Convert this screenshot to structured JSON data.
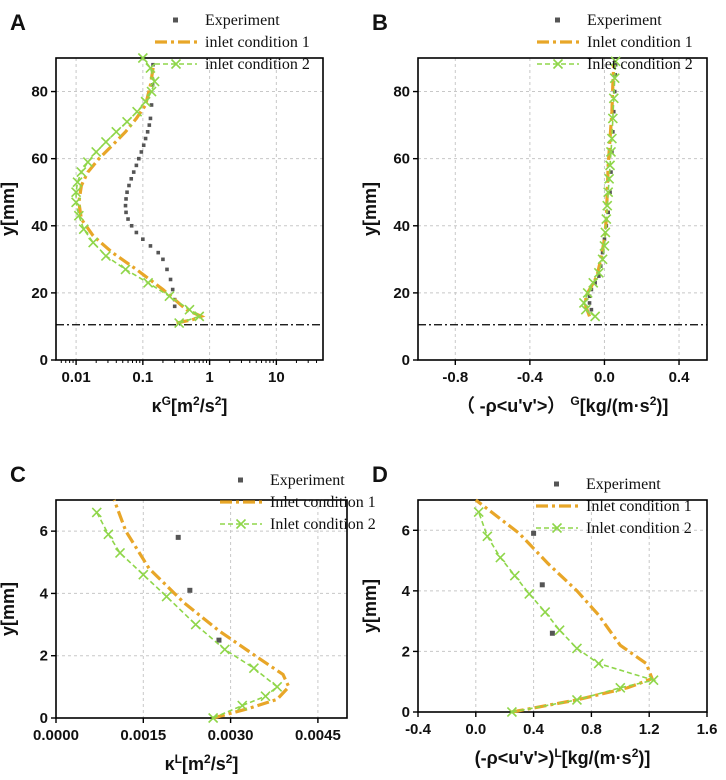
{
  "figure": {
    "colors": {
      "experiment": "#555555",
      "inlet1": "#e8a628",
      "inlet2": "#8fd64a",
      "grid": "#c8c8c8",
      "axis": "#000000",
      "refline": "#000000"
    }
  },
  "chart_data": [
    {
      "id": "A",
      "type": "line",
      "panel_letter": "A",
      "xscale": "log",
      "xlim": [
        0.005,
        50
      ],
      "ylim": [
        0,
        90
      ],
      "xticks": [
        0.01,
        0.1,
        1,
        10
      ],
      "xtick_labels": [
        "0.01",
        "0.1",
        "1",
        "10"
      ],
      "yticks": [
        0,
        20,
        40,
        60,
        80
      ],
      "ytick_labels": [
        "0",
        "20",
        "40",
        "60",
        "80"
      ],
      "ylabel": "y[mm]",
      "xlabel_main": "κ",
      "xlabel_sup": "G",
      "xlabel_rest": "[m",
      "xlabel_sup2": "2",
      "xlabel_rest2": "/s",
      "xlabel_sup3": "2",
      "xlabel_end": "]",
      "hline_y": 10.5,
      "legend": [
        "Experiment",
        "inlet condition 1",
        "inlet condition 2"
      ],
      "series": [
        {
          "name": "Experiment",
          "style": "dots",
          "x": [
            0.3,
            0.3,
            0.28,
            0.26,
            0.23,
            0.2,
            0.17,
            0.13,
            0.1,
            0.08,
            0.068,
            0.06,
            0.056,
            0.055,
            0.056,
            0.058,
            0.062,
            0.067,
            0.073,
            0.08,
            0.087,
            0.095,
            0.103,
            0.11,
            0.118,
            0.125,
            0.13,
            0.135,
            0.14,
            0.142
          ],
          "y": [
            16,
            18,
            21,
            24,
            27,
            30,
            32,
            34,
            36,
            38,
            40,
            42,
            44,
            46,
            48,
            50,
            52,
            54,
            56,
            58,
            60,
            62,
            64,
            66,
            68,
            70,
            72,
            76,
            82,
            88
          ]
        },
        {
          "name": "inlet condition 1",
          "style": "dashdot",
          "x": [
            0.32,
            0.55,
            0.75,
            0.45,
            0.2,
            0.08,
            0.035,
            0.018,
            0.012,
            0.011,
            0.012,
            0.015,
            0.022,
            0.035,
            0.055,
            0.08,
            0.11,
            0.13,
            0.145
          ],
          "y": [
            11,
            12,
            13,
            15,
            21,
            27,
            32,
            37,
            42,
            47,
            52,
            56,
            60,
            64,
            68,
            72,
            76,
            82,
            88
          ]
        },
        {
          "name": "inlet condition 2",
          "style": "xline",
          "x": [
            0.35,
            0.7,
            0.5,
            0.25,
            0.12,
            0.055,
            0.028,
            0.018,
            0.013,
            0.011,
            0.01,
            0.01,
            0.0105,
            0.012,
            0.015,
            0.02,
            0.028,
            0.04,
            0.058,
            0.082,
            0.11,
            0.135,
            0.15,
            0.13,
            0.1
          ],
          "y": [
            11,
            13,
            15,
            19,
            23,
            27,
            31,
            35,
            39,
            43,
            47,
            50,
            53,
            56,
            59,
            62,
            65,
            68,
            71,
            74,
            77,
            80,
            83,
            87,
            90
          ]
        }
      ]
    },
    {
      "id": "B",
      "type": "line",
      "panel_letter": "B",
      "xscale": "linear",
      "xlim": [
        -1.0,
        0.55
      ],
      "ylim": [
        0,
        90
      ],
      "xticks": [
        -0.8,
        -0.4,
        0.0,
        0.4
      ],
      "xtick_labels": [
        "-0.8",
        "-0.4",
        "0.0",
        "0.4"
      ],
      "yticks": [
        0,
        20,
        40,
        60,
        80
      ],
      "ytick_labels": [
        "0",
        "20",
        "40",
        "60",
        "80"
      ],
      "ylabel": "y[mm]",
      "xlabel_main": "（ -ρ<u'v'>） ",
      "xlabel_sup": "G",
      "xlabel_rest": "[kg/(m·s",
      "xlabel_sup2": "2",
      "xlabel_rest2": ")]",
      "hline_y": 10.5,
      "legend": [
        "Experiment",
        "Inlet condition 1",
        "Inlet condition 2"
      ],
      "series": [
        {
          "name": "Experiment",
          "style": "dots",
          "x": [
            -0.07,
            -0.08,
            -0.08,
            -0.07,
            -0.05,
            -0.03,
            -0.02,
            -0.01,
            0.0,
            0.01,
            0.02,
            0.03,
            0.035,
            0.04,
            0.045,
            0.05,
            0.055,
            0.058,
            0.06
          ],
          "y": [
            15,
            17,
            19,
            21,
            23,
            25,
            28,
            32,
            36,
            40,
            44,
            50,
            56,
            62,
            68,
            74,
            80,
            85,
            88
          ]
        },
        {
          "name": "Inlet condition 1",
          "style": "dashdot",
          "x": [
            -0.08,
            -0.1,
            -0.1,
            -0.07,
            -0.04,
            -0.02,
            0.0,
            0.01,
            0.015,
            0.02,
            0.03,
            0.04,
            0.045,
            0.05
          ],
          "y": [
            13,
            16,
            19,
            22,
            25,
            30,
            36,
            42,
            50,
            58,
            66,
            74,
            82,
            88
          ]
        },
        {
          "name": "Inlet condition 2",
          "style": "xline",
          "x": [
            -0.05,
            -0.1,
            -0.11,
            -0.09,
            -0.06,
            -0.03,
            -0.01,
            0.0,
            0.005,
            0.01,
            0.015,
            0.02,
            0.025,
            0.03,
            0.035,
            0.04,
            0.045,
            0.05,
            0.055,
            0.06
          ],
          "y": [
            13,
            15,
            17,
            20,
            23,
            26,
            30,
            34,
            38,
            42,
            46,
            50,
            54,
            58,
            62,
            66,
            72,
            78,
            84,
            89
          ]
        }
      ]
    },
    {
      "id": "C",
      "type": "line",
      "panel_letter": "C",
      "xscale": "linear",
      "xlim": [
        0,
        0.005
      ],
      "ylim": [
        0,
        7
      ],
      "xticks": [
        0.0,
        0.0015,
        0.003,
        0.0045
      ],
      "xtick_labels": [
        "0.0000",
        "0.0015",
        "0.0030",
        "0.0045"
      ],
      "yticks": [
        0,
        2,
        4,
        6
      ],
      "ytick_labels": [
        "0",
        "2",
        "4",
        "6"
      ],
      "ylabel": "y[mm]",
      "xlabel_main": "κ",
      "xlabel_sup": "L",
      "xlabel_rest": "[m",
      "xlabel_sup2": "2",
      "xlabel_rest2": "/s",
      "xlabel_sup3": "2",
      "xlabel_end": "]",
      "legend": [
        "Experiment",
        "Inlet condition 1",
        "Inlet condition 2"
      ],
      "series": [
        {
          "name": "Experiment",
          "style": "squares",
          "x": [
            0.0028,
            0.0023,
            0.0021
          ],
          "y": [
            2.5,
            4.1,
            5.8
          ]
        },
        {
          "name": "Inlet condition 1",
          "style": "dashdot",
          "x": [
            0.0027,
            0.0033,
            0.0038,
            0.004,
            0.0039,
            0.0035,
            0.0028,
            0.0022,
            0.0016,
            0.0012,
            0.001
          ],
          "y": [
            0,
            0.3,
            0.6,
            1.0,
            1.4,
            1.9,
            2.8,
            3.7,
            4.8,
            6.0,
            7.0
          ]
        },
        {
          "name": "Inlet condition 2",
          "style": "xline",
          "x": [
            0.0027,
            0.0032,
            0.0036,
            0.0038,
            0.0034,
            0.0029,
            0.0024,
            0.0019,
            0.0015,
            0.0011,
            0.0009,
            0.0007
          ],
          "y": [
            0,
            0.4,
            0.7,
            1.0,
            1.6,
            2.2,
            3.0,
            3.9,
            4.6,
            5.3,
            5.9,
            6.6
          ]
        }
      ]
    },
    {
      "id": "D",
      "type": "line",
      "panel_letter": "D",
      "xscale": "linear",
      "xlim": [
        -0.4,
        1.6
      ],
      "ylim": [
        0,
        7
      ],
      "xticks": [
        -0.4,
        0.0,
        0.4,
        0.8,
        1.2,
        1.6
      ],
      "xtick_labels": [
        "-0.4",
        "0.0",
        "0.4",
        "0.8",
        "1.2",
        "1.6"
      ],
      "yticks": [
        0,
        2,
        4,
        6
      ],
      "ytick_labels": [
        "0",
        "2",
        "4",
        "6"
      ],
      "ylabel": "y[mm]",
      "xlabel_main": "(-ρ<u'v'>)",
      "xlabel_sup": "L",
      "xlabel_rest": "[kg/(m·s",
      "xlabel_sup2": "2",
      "xlabel_rest2": ")]",
      "legend": [
        "Experiment",
        "Inlet condition 1",
        "Inlet condition 2"
      ],
      "series": [
        {
          "name": "Experiment",
          "style": "squares",
          "x": [
            0.53,
            0.46,
            0.4
          ],
          "y": [
            2.6,
            4.2,
            5.9
          ]
        },
        {
          "name": "Inlet condition 1",
          "style": "dashdot",
          "x": [
            0.25,
            0.7,
            1.05,
            1.22,
            1.18,
            1.0,
            0.85,
            0.7,
            0.5,
            0.3,
            0.0
          ],
          "y": [
            0,
            0.4,
            0.8,
            1.1,
            1.6,
            2.2,
            3.2,
            4.0,
            4.9,
            5.9,
            7.0
          ]
        },
        {
          "name": "Inlet condition 2",
          "style": "xline",
          "x": [
            0.25,
            0.7,
            1.0,
            1.23,
            0.85,
            0.7,
            0.58,
            0.48,
            0.37,
            0.27,
            0.17,
            0.08,
            0.02
          ],
          "y": [
            0,
            0.4,
            0.8,
            1.05,
            1.6,
            2.1,
            2.7,
            3.3,
            3.9,
            4.5,
            5.1,
            5.8,
            6.6
          ]
        }
      ]
    }
  ]
}
